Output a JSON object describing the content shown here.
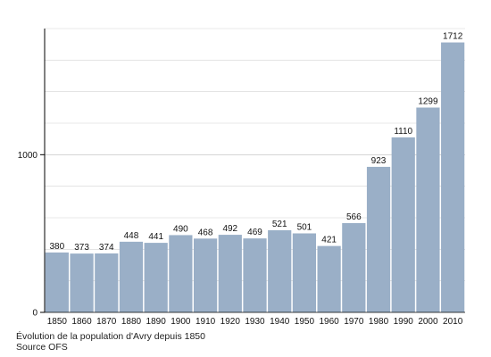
{
  "chart_data": {
    "type": "bar",
    "categories": [
      "1850",
      "1860",
      "1870",
      "1880",
      "1890",
      "1900",
      "1910",
      "1920",
      "1930",
      "1940",
      "1950",
      "1960",
      "1970",
      "1980",
      "1990",
      "2000",
      "2010"
    ],
    "values": [
      380,
      373,
      374,
      448,
      441,
      490,
      468,
      492,
      469,
      521,
      501,
      421,
      566,
      923,
      1110,
      1299,
      1712
    ],
    "y_ticks": [
      "0",
      "1000"
    ],
    "ylim": [
      0,
      1800
    ],
    "grid": true,
    "bar_color": "#9aafc7",
    "grid_color": "#d3d3d3",
    "title": "",
    "xlabel": "",
    "ylabel": ""
  },
  "caption": {
    "title": "Évolution de la population d'Avry depuis 1850",
    "source": "Source OFS"
  }
}
